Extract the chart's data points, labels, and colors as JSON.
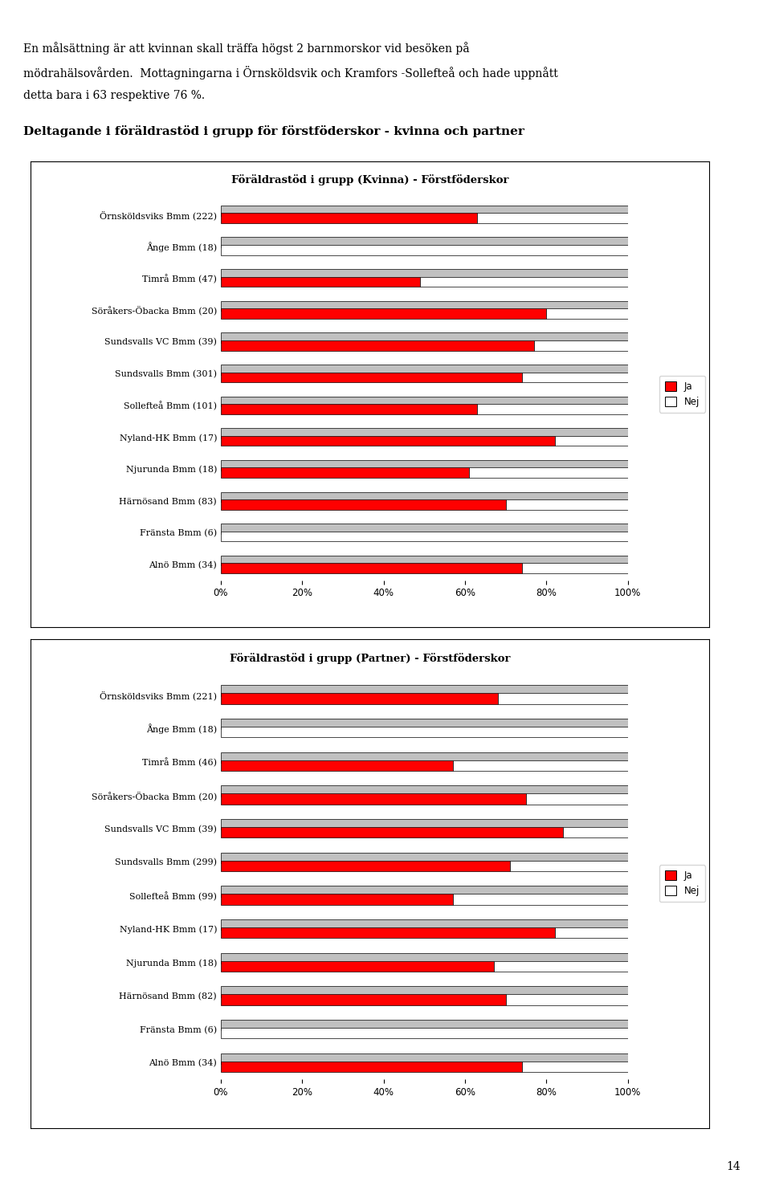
{
  "text_top_line1": "En målsättning är att kvinnan skall träffa högst 2 barnmorskor vid besöken på",
  "text_top_line2": "mödrahälsovården.  Mottagningarna i Örnsköldsvik och Kramfors -Sollefteå och hade uppnått",
  "text_top_line3": "detta bara i 63 respektive 76 %.",
  "section_title": "Deltagande i föräldrastöd i grupp för förstföderskor - kvinna och partner",
  "chart1_title": "Föräldrastöd i grupp (Kvinna) - Förstföderskor",
  "chart2_title": "Föräldrastöd i grupp (Partner) - Förstföderskor",
  "chart1_categories": [
    "Örnsköldsviks Bmm (222)",
    "Ånge Bmm (18)",
    "Timrå Bmm (47)",
    "Söråkers-Öbacka Bmm (20)",
    "Sundsvalls VC Bmm (39)",
    "Sundsvalls Bmm (301)",
    "Sollefteå Bmm (101)",
    "Nyland-HK Bmm (17)",
    "Njurunda Bmm (18)",
    "Härnösand Bmm (83)",
    "Fränsta Bmm (6)",
    "Alnö Bmm (34)"
  ],
  "chart1_ja": [
    63,
    0,
    49,
    80,
    77,
    74,
    63,
    82,
    61,
    70,
    0,
    74
  ],
  "chart2_categories": [
    "Örnsköldsviks Bmm (221)",
    "Ånge Bmm (18)",
    "Timrå Bmm (46)",
    "Söråkers-Öbacka Bmm (20)",
    "Sundsvalls VC Bmm (39)",
    "Sundsvalls Bmm (299)",
    "Sollefteå Bmm (99)",
    "Nyland-HK Bmm (17)",
    "Njurunda Bmm (18)",
    "Härnösand Bmm (82)",
    "Fränsta Bmm (6)",
    "Alnö Bmm (34)"
  ],
  "chart2_ja": [
    68,
    0,
    57,
    75,
    84,
    71,
    57,
    82,
    67,
    70,
    0,
    74
  ],
  "ja_color": "#FF0000",
  "nej_color": "#FFFFFF",
  "bar_bg_color": "#C0C0C0",
  "page_number": "14",
  "background_color": "#FFFFFF"
}
